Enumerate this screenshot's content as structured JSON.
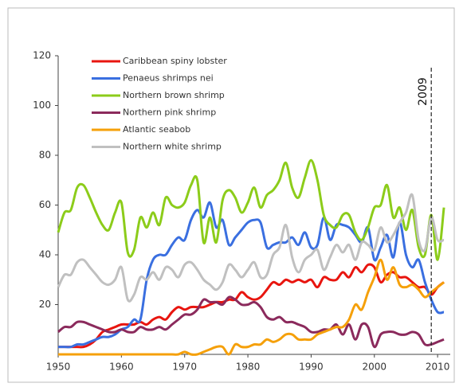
{
  "chart_data": {
    "type": "line",
    "x": [
      1950,
      1951,
      1952,
      1953,
      1954,
      1955,
      1956,
      1957,
      1958,
      1959,
      1960,
      1961,
      1962,
      1963,
      1964,
      1965,
      1966,
      1967,
      1968,
      1969,
      1970,
      1971,
      1972,
      1973,
      1974,
      1975,
      1976,
      1977,
      1978,
      1979,
      1980,
      1981,
      1982,
      1983,
      1984,
      1985,
      1986,
      1987,
      1988,
      1989,
      1990,
      1991,
      1992,
      1993,
      1994,
      1995,
      1996,
      1997,
      1998,
      1999,
      2000,
      2001,
      2002,
      2003,
      2004,
      2005,
      2006,
      2007,
      2008,
      2009,
      2010,
      2011
    ],
    "series": [
      {
        "name": "Caribbean spiny lobster",
        "color": "#e8150f",
        "values": [
          3,
          3,
          3,
          3,
          3,
          4,
          6,
          9,
          10,
          11,
          12,
          12,
          12,
          13,
          12,
          14,
          15,
          14,
          17,
          19,
          18,
          19,
          19,
          19,
          20,
          21,
          21,
          22,
          22,
          25,
          23,
          22,
          23,
          26,
          29,
          28,
          30,
          29,
          30,
          29,
          30,
          27,
          31,
          30,
          30,
          33,
          31,
          35,
          33,
          36,
          35,
          29,
          32,
          33,
          31,
          31,
          29,
          27,
          27,
          24,
          27,
          29
        ]
      },
      {
        "name": "Penaeus shrimps nei",
        "color": "#3a6fe0",
        "values": [
          3,
          3,
          3,
          4,
          4,
          5,
          6,
          7,
          7,
          8,
          10,
          11,
          14,
          14,
          30,
          38,
          40,
          40,
          44,
          47,
          46,
          54,
          58,
          55,
          61,
          51,
          54,
          44,
          47,
          50,
          53,
          54,
          53,
          43,
          44,
          45,
          45,
          47,
          44,
          49,
          43,
          44,
          55,
          46,
          52,
          52,
          51,
          48,
          45,
          51,
          38,
          43,
          48,
          39,
          53,
          40,
          35,
          38,
          29,
          22,
          17,
          17
        ]
      },
      {
        "name": "Northern brown shrimp",
        "color": "#8ccc1a",
        "values": [
          49,
          57,
          58,
          67,
          68,
          63,
          57,
          52,
          50,
          57,
          61,
          41,
          42,
          55,
          51,
          57,
          52,
          63,
          60,
          59,
          61,
          68,
          70,
          45,
          55,
          45,
          62,
          66,
          63,
          57,
          61,
          67,
          59,
          64,
          66,
          70,
          77,
          67,
          63,
          71,
          78,
          70,
          56,
          52,
          51,
          56,
          56,
          49,
          46,
          51,
          59,
          60,
          68,
          55,
          59,
          50,
          58,
          43,
          40,
          56,
          38,
          59
        ]
      },
      {
        "name": "Northern pink shrimp",
        "color": "#8b2a5c",
        "values": [
          9,
          11,
          11,
          13,
          13,
          12,
          11,
          10,
          9,
          9,
          10,
          9,
          9,
          11,
          10,
          10,
          11,
          10,
          12,
          14,
          16,
          16,
          18,
          22,
          21,
          21,
          20,
          23,
          22,
          20,
          20,
          21,
          19,
          15,
          14,
          15,
          13,
          13,
          12,
          11,
          9,
          9,
          10,
          10,
          12,
          8,
          12,
          6,
          12,
          11,
          3,
          8,
          9,
          9,
          8,
          8,
          9,
          8,
          4,
          4,
          5,
          6
        ]
      },
      {
        "name": "Atlantic seabob",
        "color": "#f5a00a",
        "values": [
          0,
          0,
          0,
          0,
          0,
          0,
          0,
          0,
          0,
          0,
          0,
          0,
          0,
          0,
          0,
          0,
          0,
          0,
          0,
          0,
          1,
          0,
          0,
          1,
          2,
          3,
          3,
          0,
          4,
          3,
          3,
          4,
          4,
          6,
          5,
          6,
          8,
          8,
          6,
          6,
          6,
          8,
          9,
          10,
          11,
          11,
          14,
          20,
          18,
          25,
          31,
          38,
          30,
          35,
          28,
          27,
          28,
          26,
          23,
          25,
          27,
          29
        ]
      },
      {
        "name": "Northern white shrimp",
        "color": "#c0c0c0",
        "values": [
          27,
          32,
          32,
          37,
          38,
          35,
          32,
          29,
          28,
          30,
          35,
          22,
          24,
          31,
          30,
          33,
          30,
          35,
          34,
          31,
          36,
          37,
          34,
          30,
          28,
          26,
          29,
          36,
          34,
          31,
          34,
          37,
          31,
          32,
          40,
          43,
          52,
          39,
          33,
          38,
          40,
          42,
          34,
          39,
          44,
          41,
          44,
          38,
          45,
          44,
          42,
          51,
          45,
          48,
          53,
          57,
          64,
          46,
          42,
          55,
          46,
          46
        ]
      }
    ],
    "xlim": [
      1950,
      2012
    ],
    "ylim": [
      0,
      120
    ],
    "xticks": [
      1950,
      1960,
      1970,
      1980,
      1990,
      2000,
      2010
    ],
    "yticks": [
      20,
      40,
      60,
      80,
      100,
      120
    ],
    "annotations": [
      {
        "text": "2009",
        "x": 2009
      }
    ]
  }
}
